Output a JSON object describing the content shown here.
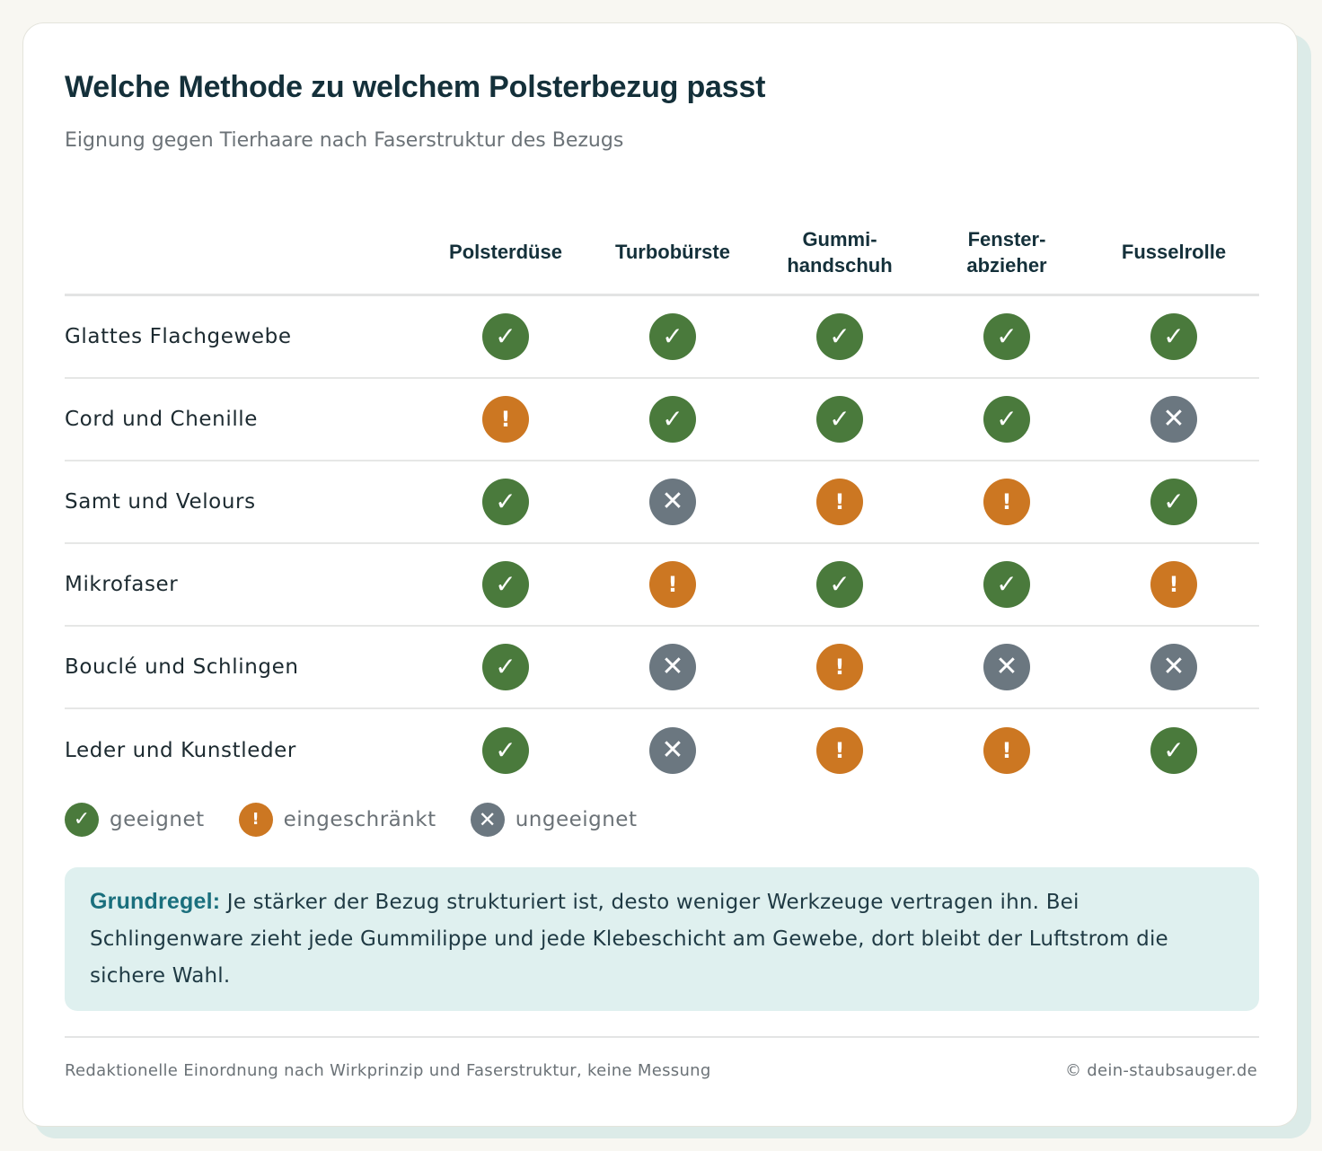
{
  "header": {
    "title": "Welche Methode zu welchem Polsterbezug passt",
    "subtitle": "Eignung gegen Tierhaare nach Faserstruktur des Bezugs"
  },
  "columns": [
    "Polsterdüse",
    "Turbobürste",
    "Gummi-\nhandschuh",
    "Fenster-\nabzieher",
    "Fusselrolle"
  ],
  "rows": [
    {
      "label": "Glattes Flachgewebe",
      "ratings": [
        "ok",
        "ok",
        "ok",
        "ok",
        "ok"
      ]
    },
    {
      "label": "Cord und Chenille",
      "ratings": [
        "warn",
        "ok",
        "ok",
        "ok",
        "no"
      ]
    },
    {
      "label": "Samt und Velours",
      "ratings": [
        "ok",
        "no",
        "warn",
        "warn",
        "ok"
      ]
    },
    {
      "label": "Mikrofaser",
      "ratings": [
        "ok",
        "warn",
        "ok",
        "ok",
        "warn"
      ]
    },
    {
      "label": "Bouclé und Schlingen",
      "ratings": [
        "ok",
        "no",
        "warn",
        "no",
        "no"
      ]
    },
    {
      "label": "Leder und Kunstleder",
      "ratings": [
        "ok",
        "no",
        "warn",
        "warn",
        "ok"
      ]
    }
  ],
  "symbols": {
    "ok": "✓",
    "warn": "!",
    "no": "✕"
  },
  "icons": {
    "ok": "checkmark-icon",
    "warn": "exclamation-icon",
    "no": "cross-icon"
  },
  "colors": {
    "ok": "#4a7a3c",
    "warn": "#cc7722",
    "no": "#6b7780",
    "accent": "#1a6f7d"
  },
  "legend": {
    "ok_label": "geeignet",
    "warn_label": "eingeschränkt",
    "no_label": "ungeeignet"
  },
  "rule": {
    "lead": "Grundregel:",
    "text": " Je stärker der Bezug strukturiert ist, desto weniger Werkzeuge vertragen ihn. Bei Schlingenware zieht jede Gummilippe und jede Klebeschicht am Gewebe, dort bleibt der Luftstrom die sichere Wahl."
  },
  "footer": {
    "note": "Redaktionelle Einordnung nach Wirkprinzip und Faserstruktur, keine Messung",
    "copyright": "© dein-staubsauger.de"
  }
}
